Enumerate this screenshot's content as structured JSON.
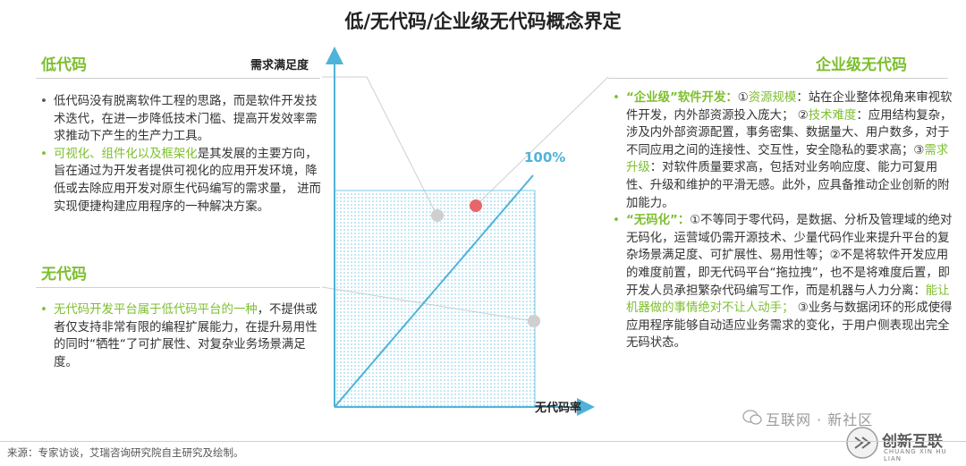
{
  "title": "低/无代码/企业级无代码概念界定",
  "low_code": {
    "heading": "低代码",
    "bullet1": "低代码没有脱离软件工程的思路，而是软件开发技术迭代，在进一步降低技术门槛、提高开发效率需求推动下产生的生产力工具。",
    "bullet2_highlight": "可视化、组件化以及框架化",
    "bullet2_rest": "是其发展的主要方向，旨在通过为开发者提供可视化的应用开发环境，降低或去除应用开发对原生代码编写的需求量， 进而实现便捷构建应用程序的一种解决方案。"
  },
  "no_code": {
    "heading": "无代码",
    "bullet1_highlight": "无代码开发平台属于低代码平台的一种",
    "bullet1_rest": "，不提供或者仅支持非常有限的编程扩展能力，在提升易用性的同时“牺牲“了可扩展性、对复杂业务场景满足度。"
  },
  "enterprise": {
    "heading": "企业级无代码",
    "p1_label": "“企业级”软件开发：",
    "p1_k1": "资源规模",
    "p1_t1": "：站在企业整体视角来审视软件开发，内外部资源投入庞大；",
    "p1_k2": "技术难度",
    "p1_t2": "：应用结构复杂，涉及内外部资源配置，事务密集、数据量大、用户数多，对于不同应用之间的连接性、交互性，安全隐私的要求高；",
    "p1_k3": "需求升级",
    "p1_t3": "：对软件质量要求高，包括对业务响应度、能力可复用性、升级和维护的平滑无感。此外，应具备推动企业创新的附加能力。",
    "p2_label": "“无码化”：",
    "p2_t1": "①不等同于零代码，是数据、分析及管理域的绝对无码化，运营域仍需开源技术、少量代码作业来提升平台的复杂场景满足度、可扩展性、易用性等；②不是将软件开发应用的难度前置，即无代码平台“拖拉拽”，也不是将难度后置，即开发人员承担繁杂代码编写工作，而是机器与人力分离：",
    "p2_k1": "能让机器做的事情绝对不让人动手；",
    "p2_t2": " ③业务与数据闭环的形成使得应用程序能够自动适应业务需求的变化，于用户侧表现出完全无码状态。",
    "m1": "①",
    "m2": "②",
    "m3": "③"
  },
  "chart": {
    "y_axis_label": "需求满足度",
    "x_axis_label": "无代码率",
    "hundred_label": "100%"
  },
  "source": "来源：专家访谈，艾瑞咨询研究院自主研究及绘制。",
  "watermark": "互联网 · 新社区",
  "logo": {
    "cn": "创新互联",
    "en": "CHUANG XIN HU LIAN"
  },
  "colors": {
    "green": "#7dbf2e",
    "blue": "#4fb3d9",
    "red_dot": "#e8666a",
    "gray_dot": "#cfcfcf"
  }
}
